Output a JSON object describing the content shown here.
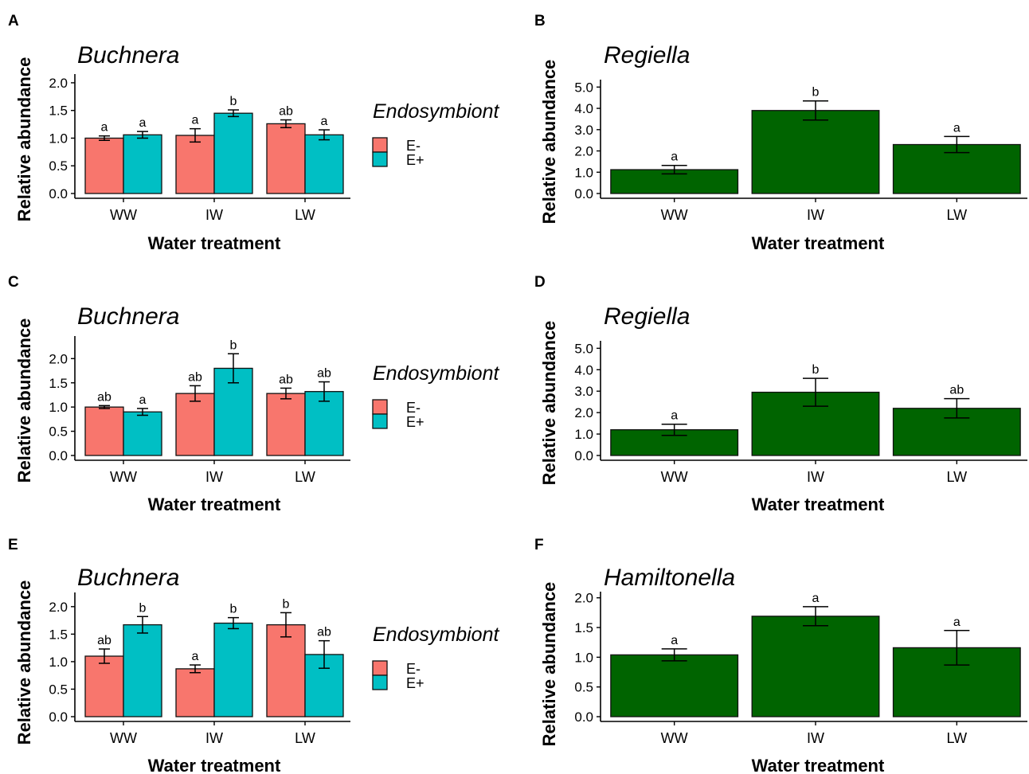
{
  "colors": {
    "e_minus": "#F8766D",
    "e_plus": "#00BFC4",
    "bar_single": "#006400"
  },
  "xlabel": "Water treatment",
  "ylabel": "Relative abundance",
  "legend": {
    "title": "Endosymbiont",
    "items": [
      "E-",
      "E+"
    ]
  },
  "chart_data": [
    {
      "panel": "A",
      "type": "bar",
      "title": "Buchnera",
      "xlabel": "Water treatment",
      "ylabel": "Relative abundance",
      "categories": [
        "WW",
        "IW",
        "LW"
      ],
      "ylim": [
        0,
        2.1
      ],
      "yticks": [
        "0.0",
        "0.5",
        "1.0",
        "1.5",
        "2.0"
      ],
      "legend_title": "Endosymbiont",
      "legend_position": "right",
      "series": [
        {
          "name": "E-",
          "values": [
            1.0,
            1.05,
            1.26
          ],
          "err": [
            0.04,
            0.12,
            0.07
          ],
          "labels": [
            "a",
            "a",
            "ab"
          ]
        },
        {
          "name": "E+",
          "values": [
            1.06,
            1.45,
            1.06
          ],
          "err": [
            0.06,
            0.06,
            0.09
          ],
          "labels": [
            "a",
            "b",
            "a"
          ]
        }
      ]
    },
    {
      "panel": "B",
      "type": "bar",
      "title": "Regiella",
      "xlabel": "Water treatment",
      "ylabel": "Relative abundance",
      "categories": [
        "WW",
        "IW",
        "LW"
      ],
      "ylim": [
        0,
        5.2
      ],
      "yticks": [
        "0.0",
        "1.0",
        "2.0",
        "3.0",
        "4.0",
        "5.0"
      ],
      "series": [
        {
          "values": [
            1.12,
            3.9,
            2.3
          ],
          "err": [
            0.2,
            0.45,
            0.38
          ],
          "labels": [
            "a",
            "b",
            "a"
          ]
        }
      ]
    },
    {
      "panel": "C",
      "type": "bar",
      "title": "Buchnera",
      "xlabel": "Water treatment",
      "ylabel": "Relative abundance",
      "categories": [
        "WW",
        "IW",
        "LW"
      ],
      "ylim": [
        0,
        2.4
      ],
      "yticks": [
        "0.0",
        "0.5",
        "1.0",
        "1.5",
        "2.0"
      ],
      "legend_title": "Endosymbiont",
      "legend_position": "right",
      "series": [
        {
          "name": "E-",
          "values": [
            1.0,
            1.28,
            1.28
          ],
          "err": [
            0.03,
            0.16,
            0.11
          ],
          "labels": [
            "ab",
            "ab",
            "ab"
          ]
        },
        {
          "name": "E+",
          "values": [
            0.9,
            1.8,
            1.32
          ],
          "err": [
            0.07,
            0.3,
            0.2
          ],
          "labels": [
            "a",
            "b",
            "ab"
          ]
        }
      ]
    },
    {
      "panel": "D",
      "type": "bar",
      "title": "Regiella",
      "xlabel": "Water treatment",
      "ylabel": "Relative abundance",
      "categories": [
        "WW",
        "IW",
        "LW"
      ],
      "ylim": [
        0,
        5.2
      ],
      "yticks": [
        "0.0",
        "1.0",
        "2.0",
        "3.0",
        "4.0",
        "5.0"
      ],
      "series": [
        {
          "values": [
            1.2,
            2.95,
            2.2
          ],
          "err": [
            0.26,
            0.65,
            0.45
          ],
          "labels": [
            "a",
            "b",
            "ab"
          ]
        }
      ]
    },
    {
      "panel": "E",
      "type": "bar",
      "title": "Buchnera",
      "xlabel": "Water treatment",
      "ylabel": "Relative abundance",
      "categories": [
        "WW",
        "IW",
        "LW"
      ],
      "ylim": [
        0,
        2.2
      ],
      "yticks": [
        "0.0",
        "0.5",
        "1.0",
        "1.5",
        "2.0"
      ],
      "legend_title": "Endosymbiont",
      "legend_position": "right",
      "series": [
        {
          "name": "E-",
          "values": [
            1.1,
            0.87,
            1.67
          ],
          "err": [
            0.13,
            0.07,
            0.22
          ],
          "labels": [
            "ab",
            "a",
            "b"
          ]
        },
        {
          "name": "E+",
          "values": [
            1.67,
            1.7,
            1.13
          ],
          "err": [
            0.15,
            0.1,
            0.25
          ],
          "labels": [
            "b",
            "b",
            "ab"
          ]
        }
      ]
    },
    {
      "panel": "F",
      "type": "bar",
      "title": "Hamiltonella",
      "xlabel": "Water treatment",
      "ylabel": "Relative abundance",
      "categories": [
        "WW",
        "IW",
        "LW"
      ],
      "ylim": [
        0,
        2.05
      ],
      "yticks": [
        "0.0",
        "0.5",
        "1.0",
        "1.5",
        "2.0"
      ],
      "series": [
        {
          "values": [
            1.04,
            1.69,
            1.16
          ],
          "err": [
            0.1,
            0.16,
            0.29
          ],
          "labels": [
            "a",
            "a",
            "a"
          ]
        }
      ]
    }
  ]
}
